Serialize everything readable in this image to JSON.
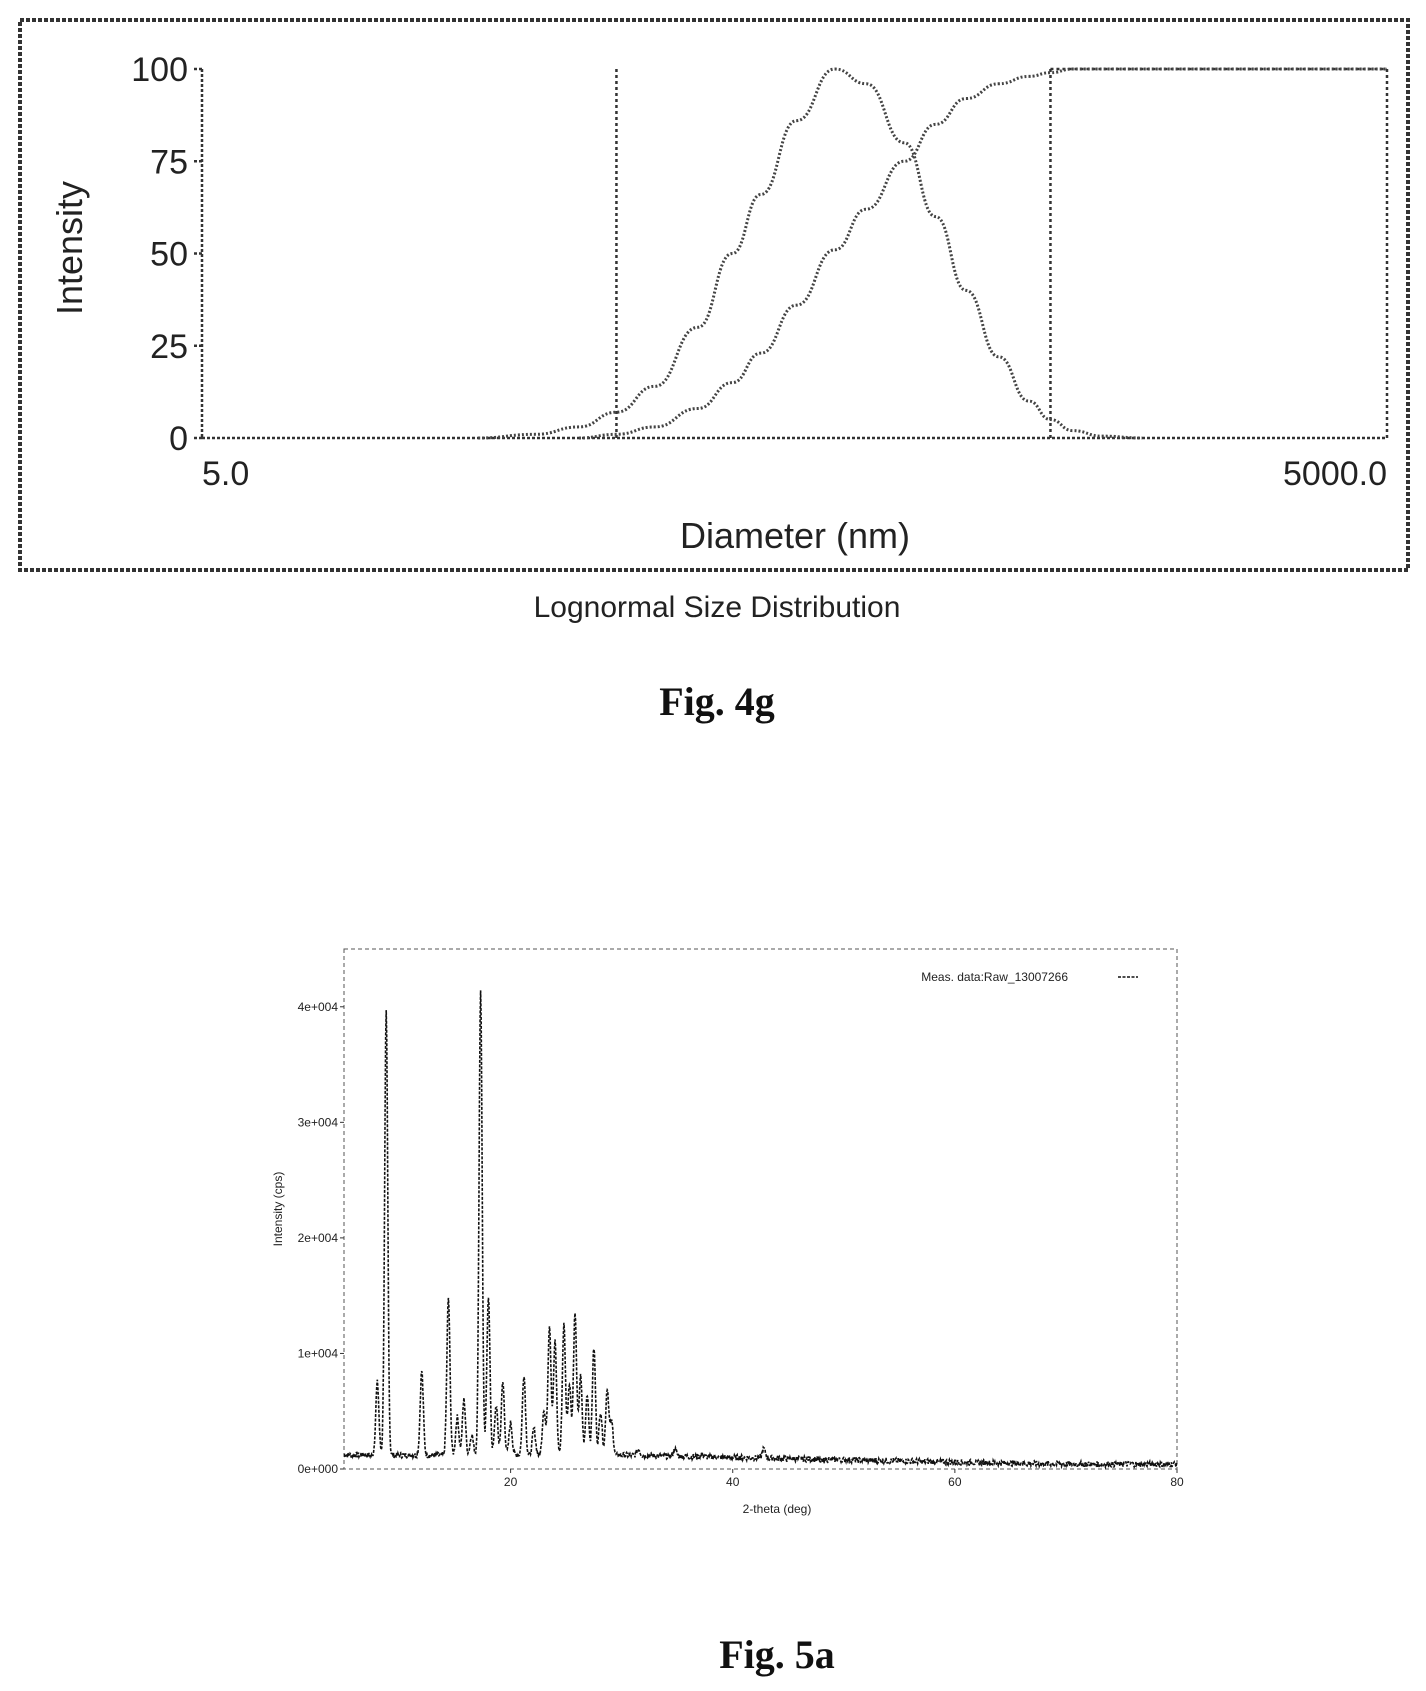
{
  "figure_4g": {
    "figure_label": "Fig. 4g",
    "caption": "Lognormal Size Distribution",
    "chart_data": {
      "type": "line",
      "xlabel": "Diameter (nm)",
      "ylabel": "Intensity",
      "x_scale": "log",
      "xlim": [
        5.0,
        5000.0
      ],
      "ylim": [
        0,
        100
      ],
      "x_tick_labels": [
        "5.0",
        "5000.0"
      ],
      "y_ticks": [
        0,
        25,
        50,
        75,
        100
      ],
      "markers": [
        {
          "x": 56
        },
        {
          "x": 703
        },
        {
          "x": 5000
        }
      ],
      "series": [
        {
          "values_kind": "distribution",
          "x": [
            25,
            35,
            45,
            56,
            70,
            90,
            110,
            130,
            160,
            200,
            240,
            300,
            360,
            430,
            520,
            620,
            703,
            800,
            950,
            1200
          ],
          "y": [
            0,
            1,
            3,
            7,
            14,
            30,
            50,
            66,
            86,
            100,
            96,
            80,
            60,
            40,
            22,
            10,
            5,
            2,
            0.5,
            0
          ]
        },
        {
          "values_kind": "cumulative",
          "x": [
            45,
            56,
            70,
            90,
            110,
            130,
            160,
            200,
            240,
            300,
            360,
            430,
            520,
            620,
            703,
            800,
            1000,
            2000,
            5000
          ],
          "y": [
            0,
            1,
            3,
            8,
            15,
            23,
            36,
            51,
            62,
            75,
            85,
            92,
            96,
            98,
            99,
            100,
            100,
            100,
            100
          ]
        }
      ]
    }
  },
  "figure_5a": {
    "figure_label": "Fig. 5a",
    "chart_data": {
      "type": "line",
      "xlabel": "2-theta (deg)",
      "ylabel": "Intensity (cps)",
      "xlim": [
        5,
        80
      ],
      "ylim": [
        0,
        45000
      ],
      "x_ticks": [
        20,
        40,
        60,
        80
      ],
      "y_tick_labels": [
        "0e+000",
        "1e+004",
        "2e+004",
        "3e+004",
        "4e+004"
      ],
      "y_ticks": [
        0,
        10000,
        20000,
        30000,
        40000
      ],
      "legend": {
        "label": "Meas. data:Raw_13007266",
        "placement": "top-right"
      },
      "peaks": [
        {
          "x": 8.0,
          "y": 7500
        },
        {
          "x": 8.8,
          "y": 39500
        },
        {
          "x": 12.0,
          "y": 8500
        },
        {
          "x": 14.4,
          "y": 14800
        },
        {
          "x": 15.2,
          "y": 4500
        },
        {
          "x": 15.8,
          "y": 6000
        },
        {
          "x": 16.5,
          "y": 3000
        },
        {
          "x": 17.3,
          "y": 41500
        },
        {
          "x": 18.0,
          "y": 15000
        },
        {
          "x": 18.7,
          "y": 5500
        },
        {
          "x": 19.3,
          "y": 7500
        },
        {
          "x": 20.0,
          "y": 4000
        },
        {
          "x": 21.2,
          "y": 8200
        },
        {
          "x": 22.1,
          "y": 3500
        },
        {
          "x": 23.0,
          "y": 5200
        },
        {
          "x": 23.5,
          "y": 12500
        },
        {
          "x": 24.0,
          "y": 11000
        },
        {
          "x": 24.8,
          "y": 12500
        },
        {
          "x": 25.3,
          "y": 7500
        },
        {
          "x": 25.8,
          "y": 13500
        },
        {
          "x": 26.3,
          "y": 8000
        },
        {
          "x": 26.9,
          "y": 6500
        },
        {
          "x": 27.5,
          "y": 10500
        },
        {
          "x": 28.1,
          "y": 5000
        },
        {
          "x": 28.7,
          "y": 7000
        },
        {
          "x": 29.1,
          "y": 4000
        },
        {
          "x": 31.5,
          "y": 1800
        },
        {
          "x": 34.8,
          "y": 1800
        },
        {
          "x": 37.2,
          "y": 1400
        },
        {
          "x": 42.8,
          "y": 2000
        },
        {
          "x": 45.5,
          "y": 1200
        },
        {
          "x": 48.0,
          "y": 1000
        }
      ],
      "baseline": 1200
    }
  }
}
